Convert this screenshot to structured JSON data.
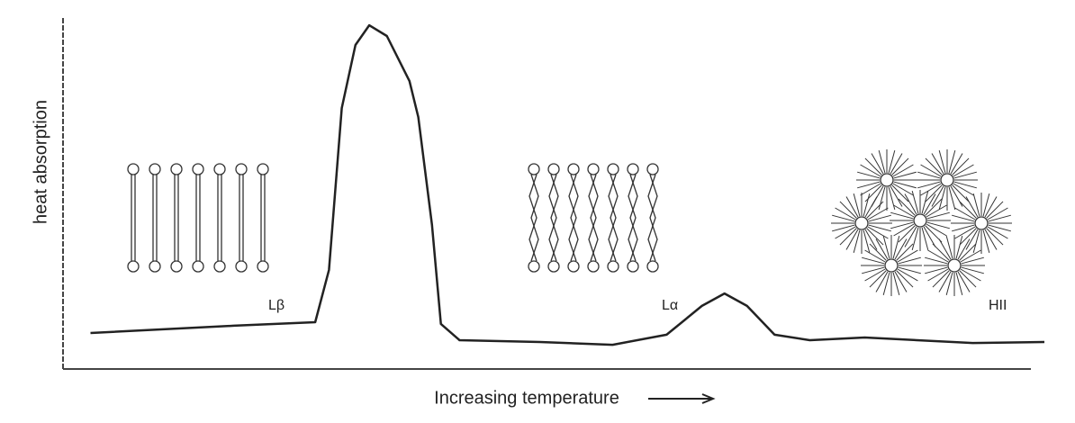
{
  "chart_data": {
    "type": "line",
    "y_label": "heat absorption",
    "x_label": "Increasing temperature",
    "annotations": [
      "Lβ",
      "Lα",
      "HII"
    ],
    "xlim": [
      0,
      100
    ],
    "ylim": [
      0,
      100
    ],
    "color": "#222222",
    "x": [
      2.8,
      17.4,
      25.7,
      27.1,
      28.4,
      29.8,
      31.2,
      33.0,
      35.3,
      36.2,
      37.6,
      38.5,
      40.4,
      48.6,
      56.0,
      61.5,
      65.1,
      67.4,
      69.7,
      72.5,
      76.1,
      81.7,
      92.7,
      100
    ],
    "values": [
      10.4,
      12.5,
      13.5,
      28.6,
      75.3,
      93.5,
      99.2,
      96.1,
      83.1,
      72.7,
      41.6,
      13,
      8.3,
      7.8,
      7.0,
      9.9,
      18.2,
      21.8,
      18.2,
      9.9,
      8.3,
      9.1,
      7.5,
      7.8
    ]
  }
}
